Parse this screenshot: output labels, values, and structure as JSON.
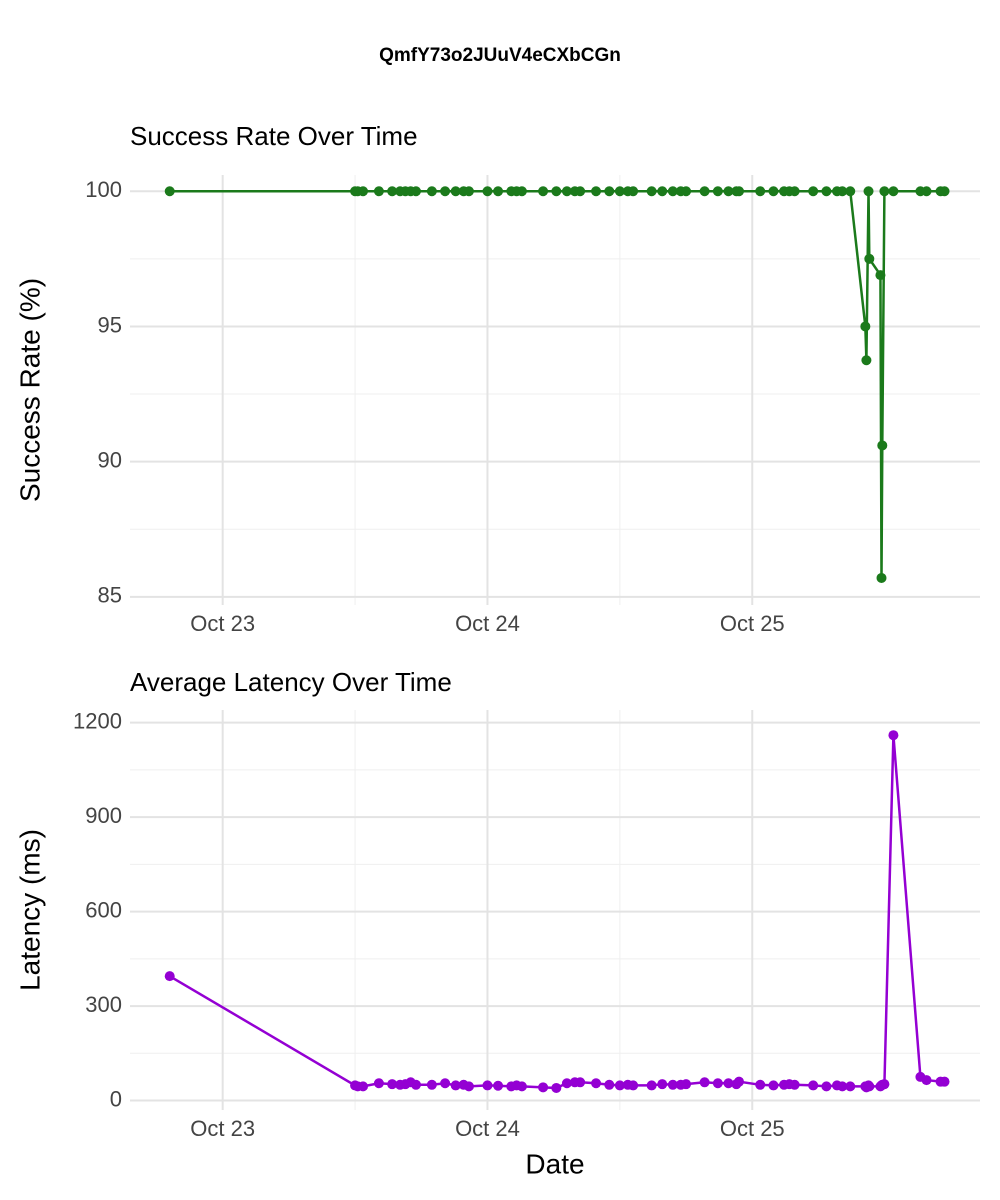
{
  "title": "QmfY73o2JUuV4eCXbCGn",
  "chart_data": [
    {
      "type": "line",
      "title": "Success Rate Over Time",
      "ylabel": "Success Rate (%)",
      "x": [
        22.8,
        23.5,
        23.51,
        23.53,
        23.59,
        23.64,
        23.67,
        23.69,
        23.71,
        23.73,
        23.79,
        23.84,
        23.88,
        23.91,
        23.93,
        24.0,
        24.04,
        24.09,
        24.11,
        24.13,
        24.21,
        24.26,
        24.3,
        24.33,
        24.35,
        24.41,
        24.46,
        24.5,
        24.53,
        24.55,
        24.62,
        24.66,
        24.7,
        24.73,
        24.75,
        24.82,
        24.87,
        24.91,
        24.94,
        24.95,
        25.03,
        25.08,
        25.12,
        25.14,
        25.16,
        25.23,
        25.28,
        25.32,
        25.34,
        25.37,
        25.427,
        25.431,
        25.439,
        25.442,
        25.484,
        25.488,
        25.491,
        25.499,
        25.533,
        25.635,
        25.658,
        25.711,
        25.726
      ],
      "series": [
        {
          "name": "Success Rate",
          "color": "#1b7a1b",
          "values": [
            100,
            100,
            100,
            100,
            100,
            100,
            100,
            100,
            100,
            100,
            100,
            100,
            100,
            100,
            100,
            100,
            100,
            100,
            100,
            100,
            100,
            100,
            100,
            100,
            100,
            100,
            100,
            100,
            100,
            100,
            100,
            100,
            100,
            100,
            100,
            100,
            100,
            100,
            100,
            100,
            100,
            100,
            100,
            100,
            100,
            100,
            100,
            100,
            100,
            100,
            95,
            93.75,
            100,
            97.5,
            96.9,
            85.7,
            90.6,
            100,
            100,
            100,
            100,
            100,
            100
          ]
        }
      ],
      "xlim": [
        22.65,
        25.86
      ],
      "xticks": [
        {
          "value": 23,
          "label": "Oct 23"
        },
        {
          "value": 24,
          "label": "Oct 24"
        },
        {
          "value": 25,
          "label": "Oct 25"
        }
      ],
      "ylim": [
        84.7,
        100.6
      ],
      "yticks": [
        85,
        90,
        95,
        100
      ],
      "grid": true
    },
    {
      "type": "line",
      "title": "Average Latency Over Time",
      "xlabel": "Date",
      "ylabel": "Latency (ms)",
      "x": [
        22.8,
        23.5,
        23.51,
        23.53,
        23.59,
        23.64,
        23.67,
        23.69,
        23.71,
        23.73,
        23.79,
        23.84,
        23.88,
        23.91,
        23.93,
        24.0,
        24.04,
        24.09,
        24.11,
        24.13,
        24.21,
        24.26,
        24.3,
        24.33,
        24.35,
        24.41,
        24.46,
        24.5,
        24.53,
        24.55,
        24.62,
        24.66,
        24.7,
        24.73,
        24.75,
        24.82,
        24.87,
        24.91,
        24.94,
        24.95,
        25.03,
        25.08,
        25.12,
        25.14,
        25.16,
        25.23,
        25.28,
        25.32,
        25.34,
        25.37,
        25.427,
        25.431,
        25.439,
        25.442,
        25.484,
        25.488,
        25.491,
        25.499,
        25.533,
        25.635,
        25.658,
        25.711,
        25.726
      ],
      "series": [
        {
          "name": "Latency",
          "color": "#9400d3",
          "values": [
            395,
            48,
            45,
            45,
            55,
            52,
            50,
            52,
            58,
            50,
            50,
            55,
            48,
            50,
            45,
            48,
            47,
            45,
            48,
            45,
            42,
            40,
            55,
            58,
            58,
            55,
            50,
            48,
            50,
            48,
            48,
            52,
            50,
            50,
            52,
            58,
            55,
            55,
            52,
            60,
            50,
            48,
            50,
            52,
            50,
            48,
            45,
            48,
            45,
            45,
            45,
            42,
            48,
            45,
            45,
            48,
            50,
            52,
            1160,
            75,
            65,
            60,
            60
          ]
        }
      ],
      "xlim": [
        22.65,
        25.86
      ],
      "xticks": [
        {
          "value": 23,
          "label": "Oct 23"
        },
        {
          "value": 24,
          "label": "Oct 24"
        },
        {
          "value": 25,
          "label": "Oct 25"
        }
      ],
      "ylim": [
        -30,
        1240
      ],
      "yticks": [
        0,
        300,
        600,
        900,
        1200
      ],
      "grid": true
    }
  ]
}
